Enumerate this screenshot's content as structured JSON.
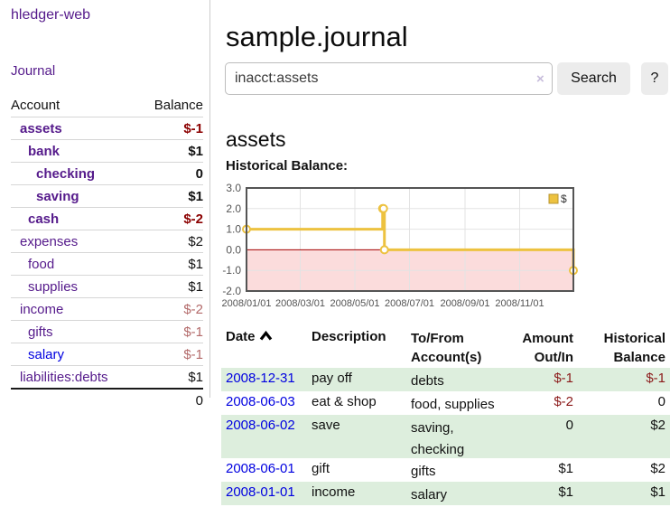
{
  "app": {
    "brand": "hledger-web"
  },
  "sidebar": {
    "journal_label": "Journal",
    "accounts": {
      "headers": {
        "account": "Account",
        "balance": "Balance"
      },
      "rows": [
        {
          "name": "assets",
          "balance": "$-1",
          "indent": 0,
          "matched": true,
          "neg": "strong",
          "link": "purple"
        },
        {
          "name": "bank",
          "balance": "$1",
          "indent": 1,
          "matched": true,
          "neg": null,
          "link": "purple"
        },
        {
          "name": "checking",
          "balance": "0",
          "indent": 2,
          "matched": true,
          "neg": null,
          "link": "purple"
        },
        {
          "name": "saving",
          "balance": "$1",
          "indent": 2,
          "matched": true,
          "neg": null,
          "link": "purple"
        },
        {
          "name": "cash",
          "balance": "$-2",
          "indent": 1,
          "matched": true,
          "neg": "strong",
          "link": "purple"
        },
        {
          "name": "expenses",
          "balance": "$2",
          "indent": 0,
          "matched": false,
          "neg": null,
          "link": "purple"
        },
        {
          "name": "food",
          "balance": "$1",
          "indent": 1,
          "matched": false,
          "neg": null,
          "link": "purple"
        },
        {
          "name": "supplies",
          "balance": "$1",
          "indent": 1,
          "matched": false,
          "neg": null,
          "link": "purple"
        },
        {
          "name": "income",
          "balance": "$-2",
          "indent": 0,
          "matched": false,
          "neg": "soft",
          "link": "purple"
        },
        {
          "name": "gifts",
          "balance": "$-1",
          "indent": 1,
          "matched": false,
          "neg": "soft",
          "link": "purple"
        },
        {
          "name": "salary",
          "balance": "$-1",
          "indent": 1,
          "matched": false,
          "neg": "soft",
          "link": "blue"
        },
        {
          "name": "liabilities:debts",
          "balance": "$1",
          "indent": 0,
          "matched": false,
          "neg": null,
          "link": "purple"
        }
      ],
      "total": "0"
    }
  },
  "main": {
    "title": "sample.journal",
    "search": {
      "value": "inacct:assets",
      "clear_label": "×",
      "button": "Search",
      "help": "?"
    },
    "heading": "assets",
    "chart_title": "Historical Balance:"
  },
  "chart_data": {
    "type": "line",
    "style": "step",
    "title": "Historical Balance",
    "series": [
      {
        "name": "$",
        "color": "#edc240",
        "points": [
          [
            "2008-01-01",
            1
          ],
          [
            "2008-06-01",
            2
          ],
          [
            "2008-06-02",
            2
          ],
          [
            "2008-06-03",
            0
          ],
          [
            "2008-12-31",
            -1
          ]
        ]
      }
    ],
    "x_range": [
      "2008-01-01",
      "2008-12-31"
    ],
    "x_ticks": [
      "2008/01/01",
      "2008/03/01",
      "2008/05/01",
      "2008/07/01",
      "2008/09/01",
      "2008/11/01"
    ],
    "y_ticks": [
      3,
      2,
      1,
      0,
      -1,
      -2
    ],
    "ylim": [
      -2,
      3
    ],
    "legend": {
      "label": "$",
      "position": "top-right"
    },
    "grid": true,
    "negative_region": true,
    "colors": {
      "line": "#edc240",
      "negative_fill": "#fbdcdc",
      "zero_line": "#a40000",
      "border": "#545454",
      "gridline": "#e3e3e3",
      "axis_text": "#545454"
    }
  },
  "transactions": {
    "headers": {
      "date": "Date",
      "description": "Description",
      "accounts_line1": "To/From",
      "accounts_line2": "Account(s)",
      "amount_line1": "Amount",
      "amount_line2": "Out/In",
      "balance_line1": "Historical",
      "balance_line2": "Balance"
    },
    "rows": [
      {
        "date": "2008-12-31",
        "description": "pay off",
        "accounts": "debts",
        "amount": "$-1",
        "balance": "$-1",
        "amount_neg": true,
        "balance_neg": true,
        "green": true
      },
      {
        "date": "2008-06-03",
        "description": "eat & shop",
        "accounts": "food, supplies",
        "amount": "$-2",
        "balance": "0",
        "amount_neg": true,
        "balance_neg": false,
        "green": false
      },
      {
        "date": "2008-06-02",
        "description": "save",
        "accounts": "saving, checking",
        "amount": "0",
        "balance": "$2",
        "amount_neg": false,
        "balance_neg": false,
        "green": true
      },
      {
        "date": "2008-06-01",
        "description": "gift",
        "accounts": "gifts",
        "amount": "$1",
        "balance": "$2",
        "amount_neg": false,
        "balance_neg": false,
        "green": false
      },
      {
        "date": "2008-01-01",
        "description": "income",
        "accounts": "salary",
        "amount": "$1",
        "balance": "$1",
        "amount_neg": false,
        "balance_neg": false,
        "green": true
      }
    ]
  },
  "colors": {
    "link_purple": "#551a8b",
    "link_blue": "#0000e0",
    "negative_strong": "#8b0000",
    "negative_soft": "#b36a6a",
    "negative_table": "#8b1a1a",
    "row_green": "#ddeedd",
    "chart_line": "#edc240"
  }
}
